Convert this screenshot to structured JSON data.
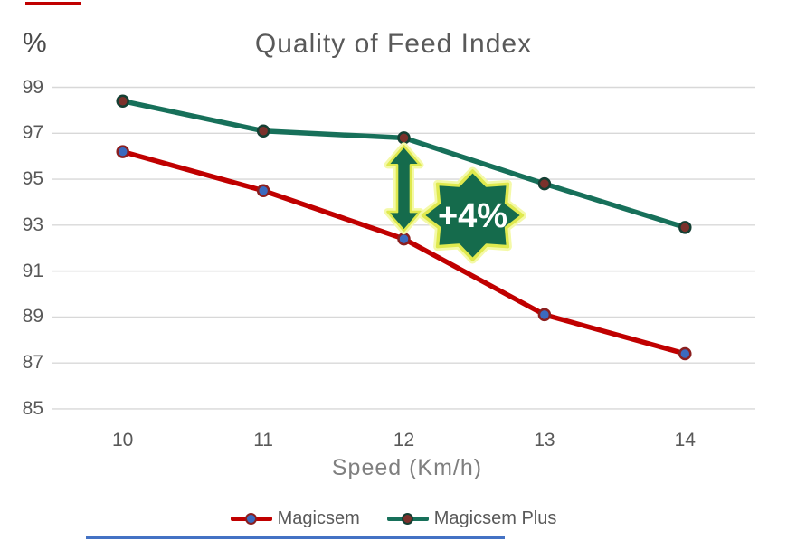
{
  "decor": {
    "top_dash_color": "#c00000",
    "bottom_line_color": "#4472c4"
  },
  "chart_data": {
    "type": "line",
    "title": "Quality of Feed Index",
    "y_unit_label": "%",
    "xlabel": "Speed (Km/h)",
    "x": [
      "10",
      "11",
      "12",
      "13",
      "14"
    ],
    "yticks": [
      99,
      97,
      95,
      93,
      91,
      89,
      87,
      85
    ],
    "ylim": [
      85,
      99.2
    ],
    "grid": "horizontal-only",
    "gridline_color": "#d8d8d8",
    "legend_position": "bottom",
    "series": [
      {
        "name": "Magicsem",
        "values": [
          96.2,
          94.5,
          92.4,
          89.1,
          87.4
        ],
        "color": "#c00000",
        "marker_fill": "#3a6abf",
        "marker_stroke": "#8b1f1f"
      },
      {
        "name": "Magicsem Plus",
        "values": [
          98.4,
          97.1,
          96.8,
          94.8,
          92.9
        ],
        "color": "#17705a",
        "marker_fill": "#7b312b",
        "marker_stroke": "#143f33"
      }
    ],
    "annotation": {
      "label": "+4%",
      "at_x": "12",
      "shape": "8-point-star",
      "fill": "#156b4c",
      "outline": "#dfe94e",
      "glow": "#f4f9a8",
      "text_color": "#ffffff",
      "arrow": "double-headed-vertical"
    }
  }
}
